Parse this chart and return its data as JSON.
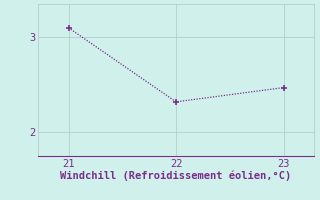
{
  "x": [
    21,
    22,
    23
  ],
  "y": [
    3.1,
    2.32,
    2.47
  ],
  "line_color": "#7b2d8b",
  "marker_color": "#7b2d8b",
  "bg_color": "#cff0eb",
  "grid_color": "#b0c8c4",
  "axis_color": "#7b2d8b",
  "xlabel": "Windchill (Refroidissement éolien,°C)",
  "xlabel_color": "#7b2d8b",
  "tick_color": "#7b2d8b",
  "xlim": [
    20.72,
    23.28
  ],
  "ylim": [
    1.75,
    3.35
  ],
  "xticks": [
    21,
    22,
    23
  ],
  "yticks": [
    2,
    3
  ],
  "xlabel_fontsize": 7.5,
  "tick_fontsize": 7.5
}
